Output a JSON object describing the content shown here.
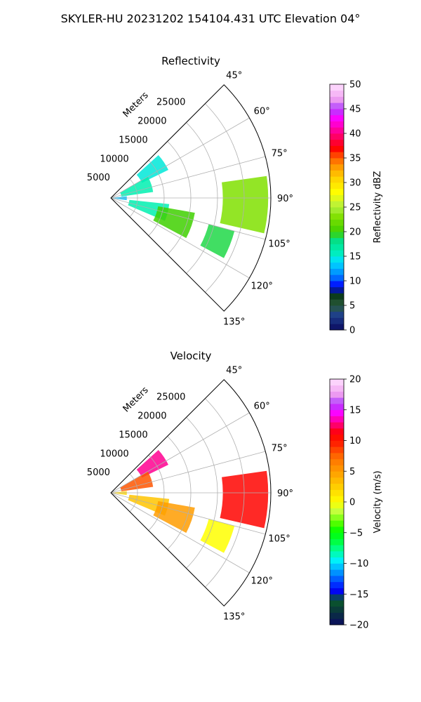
{
  "figure": {
    "suptitle": "SKYLER-HU  20231202  154104.431 UTC Elevation 04°"
  },
  "chart_data": [
    {
      "type": "heatmap",
      "projection": "polar-sector",
      "title": "Reflectivity",
      "range_label": "Meters",
      "azimuth_ticks": [
        "45°",
        "60°",
        "75°",
        "90°",
        "105°",
        "120°",
        "135°"
      ],
      "azimuth_values": [
        45,
        60,
        75,
        90,
        105,
        120,
        135
      ],
      "azimuth_range": [
        45,
        135
      ],
      "range_ticks": [
        "5000",
        "10000",
        "15000",
        "20000",
        "25000"
      ],
      "range_values": [
        5000,
        10000,
        15000,
        20000,
        25000
      ],
      "range_max": 30000,
      "grid": true,
      "colorbar": {
        "label": "Reflectivity dBZ",
        "min": 0,
        "max": 50,
        "ticks": [
          "0",
          "5",
          "10",
          "15",
          "20",
          "25",
          "30",
          "35",
          "40",
          "45",
          "50"
        ],
        "tick_values": [
          0,
          5,
          10,
          15,
          20,
          25,
          30,
          35,
          40,
          45,
          50
        ],
        "levels": 40
      },
      "echo_regions": [
        {
          "az": [
            48,
            64
          ],
          "r": [
            6500,
            12000
          ],
          "value": 15
        },
        {
          "az": [
            60,
            82
          ],
          "r": [
            2000,
            8000
          ],
          "value": 16
        },
        {
          "az": [
            84,
            98
          ],
          "r": [
            0,
            3000
          ],
          "value": 13
        },
        {
          "az": [
            96,
            113
          ],
          "r": [
            3500,
            11000
          ],
          "value": 16
        },
        {
          "az": [
            100,
            118
          ],
          "r": [
            9000,
            16000
          ],
          "value": 20
        },
        {
          "az": [
            82,
            103
          ],
          "r": [
            21000,
            29500
          ],
          "value": 23
        },
        {
          "az": [
            105,
            118
          ],
          "r": [
            19000,
            24000
          ],
          "value": 19
        }
      ]
    },
    {
      "type": "heatmap",
      "projection": "polar-sector",
      "title": "Velocity",
      "range_label": "Meters",
      "azimuth_ticks": [
        "45°",
        "60°",
        "75°",
        "90°",
        "105°",
        "120°",
        "135°"
      ],
      "azimuth_values": [
        45,
        60,
        75,
        90,
        105,
        120,
        135
      ],
      "azimuth_range": [
        45,
        135
      ],
      "range_ticks": [
        "5000",
        "10000",
        "15000",
        "20000",
        "25000"
      ],
      "range_values": [
        5000,
        10000,
        15000,
        20000,
        25000
      ],
      "range_max": 30000,
      "grid": true,
      "colorbar": {
        "label": "Velocity (m/s)",
        "min": -20,
        "max": 20,
        "ticks": [
          "−20",
          "−15",
          "−10",
          "−5",
          "0",
          "5",
          "10",
          "15",
          "20"
        ],
        "tick_values": [
          -20,
          -15,
          -10,
          -5,
          0,
          5,
          10,
          15,
          20
        ],
        "levels": 40
      },
      "echo_regions": [
        {
          "az": [
            48,
            64
          ],
          "r": [
            6500,
            12000
          ],
          "value": 13
        },
        {
          "az": [
            60,
            82
          ],
          "r": [
            2000,
            8000
          ],
          "value": 8
        },
        {
          "az": [
            84,
            98
          ],
          "r": [
            0,
            3000
          ],
          "value": 2
        },
        {
          "az": [
            96,
            113
          ],
          "r": [
            3500,
            11000
          ],
          "value": 3
        },
        {
          "az": [
            100,
            118
          ],
          "r": [
            9000,
            16000
          ],
          "value": 5
        },
        {
          "az": [
            82,
            103
          ],
          "r": [
            21000,
            29500
          ],
          "value": 11
        },
        {
          "az": [
            105,
            118
          ],
          "r": [
            19000,
            24000
          ],
          "value": 0
        }
      ]
    }
  ]
}
